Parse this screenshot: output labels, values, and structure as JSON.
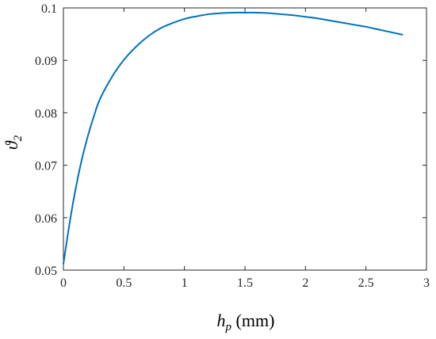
{
  "chart_data": {
    "type": "line",
    "title": "",
    "xlabel_var": "h",
    "xlabel_sub": "p",
    "xlabel_unit": " (mm)",
    "ylabel_var": "ϑ",
    "ylabel_sub": "2",
    "xlim": [
      0,
      3
    ],
    "ylim": [
      0.05,
      0.1
    ],
    "xticks": [
      0,
      0.5,
      1,
      1.5,
      2,
      2.5,
      3
    ],
    "yticks": [
      0.05,
      0.06,
      0.07,
      0.08,
      0.09,
      0.1
    ],
    "xtick_labels": [
      "0",
      "0.5",
      "1",
      "1.5",
      "2",
      "2.5",
      "3"
    ],
    "ytick_labels": [
      "0.05",
      "0.06",
      "0.07",
      "0.08",
      "0.09",
      "0.1"
    ],
    "grid": false,
    "legend": "none",
    "series": [
      {
        "color": "#0072BD",
        "x": [
          0,
          0.05,
          0.1,
          0.15,
          0.2,
          0.25,
          0.3,
          0.4,
          0.5,
          0.6,
          0.7,
          0.8,
          0.9,
          1.0,
          1.1,
          1.2,
          1.3,
          1.4,
          1.5,
          1.6,
          1.7,
          1.8,
          1.9,
          2.0,
          2.1,
          2.2,
          2.3,
          2.4,
          2.5,
          2.6,
          2.7,
          2.8
        ],
        "y": [
          0.0512,
          0.0588,
          0.0654,
          0.0709,
          0.0754,
          0.0792,
          0.0825,
          0.0868,
          0.0901,
          0.0926,
          0.0946,
          0.0961,
          0.0971,
          0.0979,
          0.0984,
          0.0988,
          0.099,
          0.0991,
          0.0991,
          0.0991,
          0.099,
          0.0988,
          0.0986,
          0.0983,
          0.098,
          0.0976,
          0.0972,
          0.0968,
          0.0964,
          0.0959,
          0.0954,
          0.0949
        ]
      }
    ]
  }
}
